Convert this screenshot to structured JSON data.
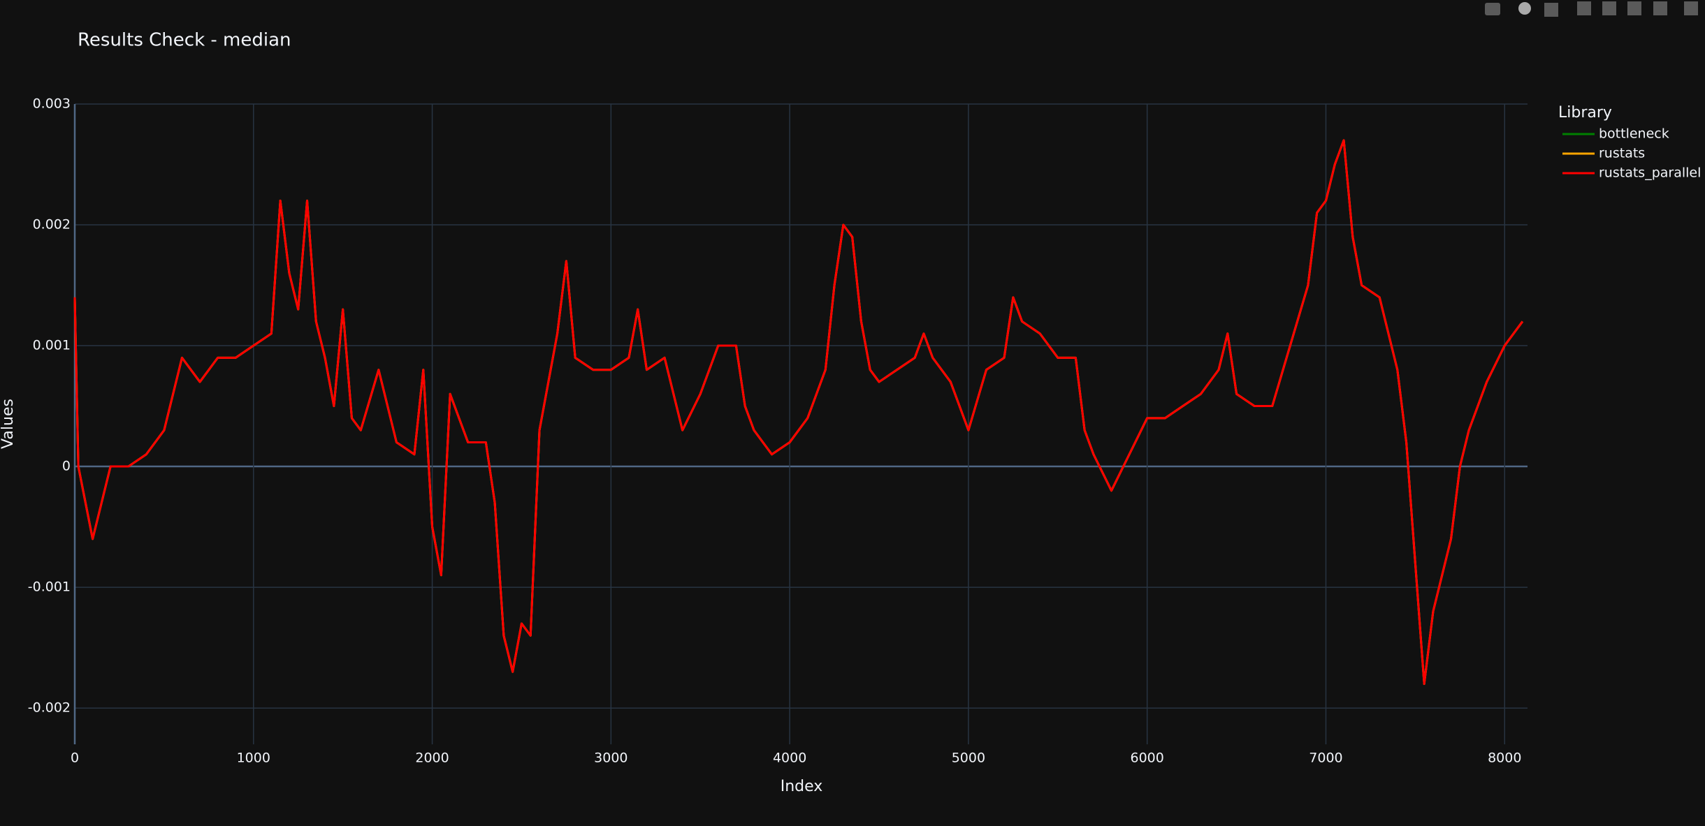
{
  "chart_data": {
    "type": "line",
    "title": "Results Check - median",
    "x_label": "Index",
    "y_label": "Values",
    "legend_title": "Library",
    "legend_position": "right",
    "grid": true,
    "xlim": [
      0,
      8128
    ],
    "ylim": [
      -0.0023,
      0.003
    ],
    "xticks": [
      0,
      1000,
      2000,
      3000,
      4000,
      5000,
      6000,
      7000,
      8000
    ],
    "yticks": [
      -0.002,
      -0.001,
      0,
      0.001,
      0.002,
      0.003
    ],
    "x": [
      0,
      20,
      100,
      200,
      300,
      400,
      500,
      600,
      700,
      800,
      900,
      1000,
      1100,
      1150,
      1200,
      1250,
      1300,
      1350,
      1400,
      1450,
      1500,
      1550,
      1600,
      1700,
      1800,
      1900,
      1950,
      2000,
      2050,
      2100,
      2200,
      2300,
      2350,
      2400,
      2450,
      2500,
      2550,
      2600,
      2650,
      2700,
      2750,
      2800,
      2900,
      3000,
      3100,
      3150,
      3200,
      3300,
      3400,
      3500,
      3600,
      3700,
      3750,
      3800,
      3900,
      4000,
      4100,
      4200,
      4250,
      4300,
      4350,
      4400,
      4450,
      4500,
      4600,
      4700,
      4750,
      4800,
      4900,
      5000,
      5100,
      5200,
      5250,
      5300,
      5400,
      5500,
      5600,
      5650,
      5700,
      5800,
      5900,
      6000,
      6100,
      6200,
      6300,
      6400,
      6450,
      6500,
      6600,
      6700,
      6800,
      6900,
      6950,
      7000,
      7050,
      7100,
      7150,
      7200,
      7300,
      7400,
      7450,
      7500,
      7550,
      7600,
      7700,
      7750,
      7800,
      7900,
      8000,
      8100
    ],
    "series": [
      {
        "name": "bottleneck",
        "color": "#008000",
        "values": [
          0.0014,
          0,
          -0.0006,
          0,
          0,
          0.0001,
          0.0003,
          0.0009,
          0.0007,
          0.0009,
          0.0009,
          0.001,
          0.0011,
          0.0022,
          0.0016,
          0.0013,
          0.0022,
          0.0012,
          0.0009,
          0.0005,
          0.0013,
          0.0004,
          0.0003,
          0.0008,
          0.0002,
          0.0001,
          0.0008,
          -0.0005,
          -0.0009,
          0.0006,
          0.0002,
          0.0002,
          -0.0003,
          -0.0014,
          -0.0017,
          -0.0013,
          -0.0014,
          0.0003,
          0.0007,
          0.0011,
          0.0017,
          0.0009,
          0.0008,
          0.0008,
          0.0009,
          0.0013,
          0.0008,
          0.0009,
          0.0003,
          0.0006,
          0.001,
          0.001,
          0.0005,
          0.0003,
          0.0001,
          0.0002,
          0.0004,
          0.0008,
          0.0015,
          0.002,
          0.0019,
          0.0012,
          0.0008,
          0.0007,
          0.0008,
          0.0009,
          0.0011,
          0.0009,
          0.0007,
          0.0003,
          0.0008,
          0.0009,
          0.0014,
          0.0012,
          0.0011,
          0.0009,
          0.0009,
          0.0003,
          0.0001,
          -0.0002,
          0.0001,
          0.0004,
          0.0004,
          0.0005,
          0.0006,
          0.0008,
          0.0011,
          0.0006,
          0.0005,
          0.0005,
          0.001,
          0.0015,
          0.0021,
          0.0022,
          0.0025,
          0.0027,
          0.0019,
          0.0015,
          0.0014,
          0.0008,
          0.0002,
          -0.0008,
          -0.0018,
          -0.0012,
          -0.0006,
          0,
          0.0003,
          0.0007,
          0.001,
          0.0012
        ]
      },
      {
        "name": "rustats",
        "color": "#ffa500",
        "values": [
          0.0014,
          0,
          -0.0006,
          0,
          0,
          0.0001,
          0.0003,
          0.0009,
          0.0007,
          0.0009,
          0.0009,
          0.001,
          0.0011,
          0.0022,
          0.0016,
          0.0013,
          0.0022,
          0.0012,
          0.0009,
          0.0005,
          0.0013,
          0.0004,
          0.0003,
          0.0008,
          0.0002,
          0.0001,
          0.0008,
          -0.0005,
          -0.0009,
          0.0006,
          0.0002,
          0.0002,
          -0.0003,
          -0.0014,
          -0.0017,
          -0.0013,
          -0.0014,
          0.0003,
          0.0007,
          0.0011,
          0.0017,
          0.0009,
          0.0008,
          0.0008,
          0.0009,
          0.0013,
          0.0008,
          0.0009,
          0.0003,
          0.0006,
          0.001,
          0.001,
          0.0005,
          0.0003,
          0.0001,
          0.0002,
          0.0004,
          0.0008,
          0.0015,
          0.002,
          0.0019,
          0.0012,
          0.0008,
          0.0007,
          0.0008,
          0.0009,
          0.0011,
          0.0009,
          0.0007,
          0.0003,
          0.0008,
          0.0009,
          0.0014,
          0.0012,
          0.0011,
          0.0009,
          0.0009,
          0.0003,
          0.0001,
          -0.0002,
          0.0001,
          0.0004,
          0.0004,
          0.0005,
          0.0006,
          0.0008,
          0.0011,
          0.0006,
          0.0005,
          0.0005,
          0.001,
          0.0015,
          0.0021,
          0.0022,
          0.0025,
          0.0027,
          0.0019,
          0.0015,
          0.0014,
          0.0008,
          0.0002,
          -0.0008,
          -0.0018,
          -0.0012,
          -0.0006,
          0,
          0.0003,
          0.0007,
          0.001,
          0.0012
        ]
      },
      {
        "name": "rustats_parallel",
        "color": "#ff0000",
        "values": [
          0.0014,
          0,
          -0.0006,
          0,
          0,
          0.0001,
          0.0003,
          0.0009,
          0.0007,
          0.0009,
          0.0009,
          0.001,
          0.0011,
          0.0022,
          0.0016,
          0.0013,
          0.0022,
          0.0012,
          0.0009,
          0.0005,
          0.0013,
          0.0004,
          0.0003,
          0.0008,
          0.0002,
          0.0001,
          0.0008,
          -0.0005,
          -0.0009,
          0.0006,
          0.0002,
          0.0002,
          -0.0003,
          -0.0014,
          -0.0017,
          -0.0013,
          -0.0014,
          0.0003,
          0.0007,
          0.0011,
          0.0017,
          0.0009,
          0.0008,
          0.0008,
          0.0009,
          0.0013,
          0.0008,
          0.0009,
          0.0003,
          0.0006,
          0.001,
          0.001,
          0.0005,
          0.0003,
          0.0001,
          0.0002,
          0.0004,
          0.0008,
          0.0015,
          0.002,
          0.0019,
          0.0012,
          0.0008,
          0.0007,
          0.0008,
          0.0009,
          0.0011,
          0.0009,
          0.0007,
          0.0003,
          0.0008,
          0.0009,
          0.0014,
          0.0012,
          0.0011,
          0.0009,
          0.0009,
          0.0003,
          0.0001,
          -0.0002,
          0.0001,
          0.0004,
          0.0004,
          0.0005,
          0.0006,
          0.0008,
          0.0011,
          0.0006,
          0.0005,
          0.0005,
          0.001,
          0.0015,
          0.0021,
          0.0022,
          0.0025,
          0.0027,
          0.0019,
          0.0015,
          0.0014,
          0.0008,
          0.0002,
          -0.0008,
          -0.0018,
          -0.0012,
          -0.0006,
          0,
          0.0003,
          0.0007,
          0.001,
          0.0012
        ]
      }
    ]
  }
}
